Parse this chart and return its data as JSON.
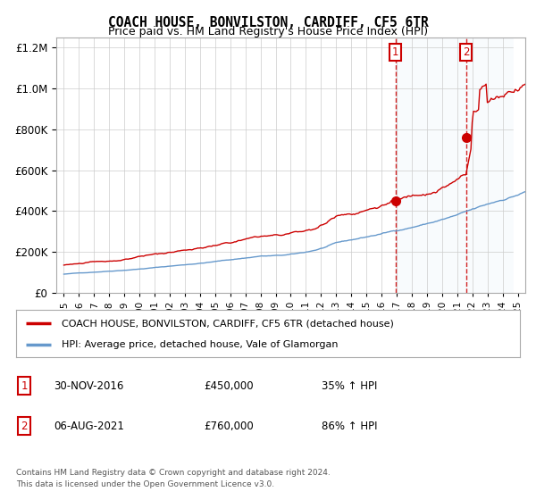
{
  "title": "COACH HOUSE, BONVILSTON, CARDIFF, CF5 6TR",
  "subtitle": "Price paid vs. HM Land Registry's House Price Index (HPI)",
  "legend_line1": "COACH HOUSE, BONVILSTON, CARDIFF, CF5 6TR (detached house)",
  "legend_line2": "HPI: Average price, detached house, Vale of Glamorgan",
  "annotation1_date": "30-NOV-2016",
  "annotation1_price": "£450,000",
  "annotation1_hpi": "35% ↑ HPI",
  "annotation2_date": "06-AUG-2021",
  "annotation2_price": "£760,000",
  "annotation2_hpi": "86% ↑ HPI",
  "footer": "Contains HM Land Registry data © Crown copyright and database right 2024.\nThis data is licensed under the Open Government Licence v3.0.",
  "red_color": "#cc0000",
  "blue_color": "#6699cc",
  "bg_shading_color": "#dce9f5",
  "grid_color": "#cccccc",
  "sale1_x": 2016.92,
  "sale1_y": 450000,
  "sale2_x": 2021.59,
  "sale2_y": 760000,
  "ylim": [
    0,
    1250000
  ],
  "xlim": [
    1994.5,
    2025.5
  ]
}
